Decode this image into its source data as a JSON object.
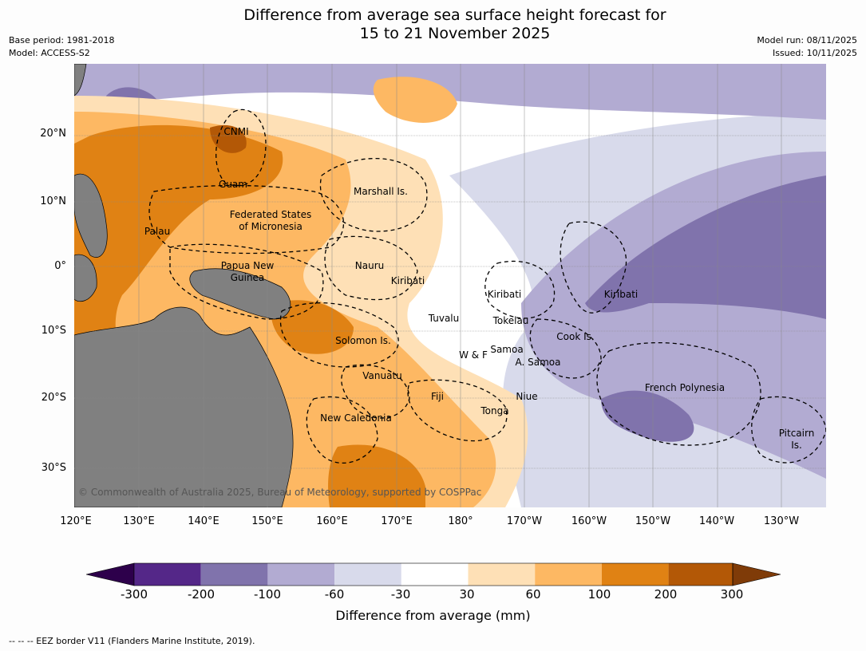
{
  "title": {
    "line1": "Difference from average sea surface height forecast for",
    "line2": "15 to 21 November 2025"
  },
  "meta": {
    "base_period": "Base period: 1981-2018",
    "model": "Model: ACCESS-S2",
    "model_run": "Model run: 08/11/2025",
    "issued": "Issued: 10/11/2025"
  },
  "map": {
    "lat_ticks": [
      "20°N",
      "10°N",
      "0°",
      "10°S",
      "20°S",
      "30°S"
    ],
    "lon_ticks": [
      "120°E",
      "130°E",
      "140°E",
      "150°E",
      "160°E",
      "170°E",
      "180°",
      "170°W",
      "160°W",
      "150°W",
      "140°W",
      "130°W"
    ],
    "labels": {
      "cnmi": "CNMI",
      "guam": "Guam",
      "marshall": "Marshall Is.",
      "fsm_1": "Federated States",
      "fsm_2": "of Micronesia",
      "palau": "Palau",
      "png_1": "Papua New",
      "png_2": "Guinea",
      "nauru": "Nauru",
      "kiribati_west": "Kiribati",
      "kiribati_central": "Kiribati",
      "kiribati_east": "Kiribati",
      "tuvalu": "Tuvalu",
      "tokelau": "Tokelau",
      "cook": "Cook Is.",
      "solomon": "Solomon Is.",
      "samoa": "Samoa",
      "wallis": "W & F",
      "am_samoa": "A. Samoa",
      "vanuatu": "Vanuatu",
      "fiji": "Fiji",
      "niue": "Niue",
      "tonga": "Tonga",
      "french_polynesia": "French Polynesia",
      "new_caledonia": "New Caledonia",
      "pitcairn_1": "Pitcairn",
      "pitcairn_2": "Is."
    },
    "copyright": "© Commonwealth of Australia 2025, Bureau of Meteorology, supported by COSPPac"
  },
  "colorbar": {
    "ticks": [
      "-300",
      "-200",
      "-100",
      "-60",
      "-30",
      "30",
      "60",
      "100",
      "200",
      "300"
    ],
    "colors": [
      "#2d004b",
      "#542788",
      "#8073ac",
      "#b2abd2",
      "#d8daeb",
      "#ffffff",
      "#fee0b6",
      "#fdb863",
      "#e08214",
      "#b35806",
      "#7f3b08"
    ],
    "title": "Difference from average (mm)"
  },
  "footnote": "--  --  -- EEZ border V11 (Flanders Marine Institute, 2019)."
}
